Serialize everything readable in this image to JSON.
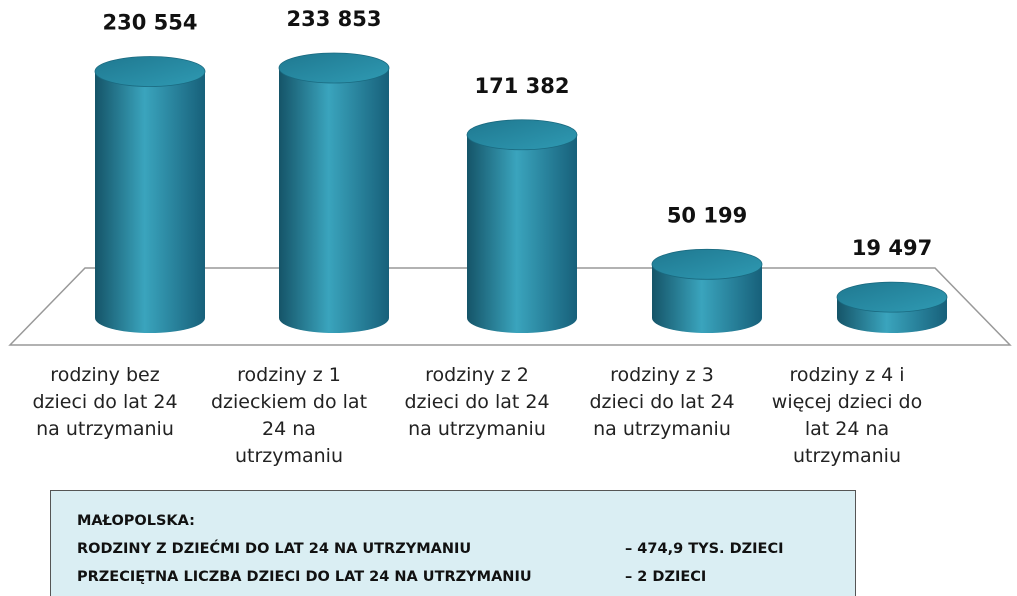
{
  "chart_data": {
    "type": "cylinder",
    "categories": [
      "rodziny bez dzieci do lat 24 na utrzymaniu",
      "rodziny z 1 dzieckiem do lat 24 na utrzymaniu",
      "rodziny z 2 dzieci do lat 24 na utrzymaniu",
      "rodziny z 3 dzieci do lat 24 na utrzymaniu",
      "rodziny z 4 i więcej dzieci do lat 24 na utrzymaniu"
    ],
    "values": [
      230554,
      233853,
      171382,
      50199,
      19497
    ],
    "value_labels": [
      "230 554",
      "233 853",
      "171 382",
      "50 199",
      "19 497"
    ],
    "color": "#237f97"
  },
  "summary": {
    "heading": "MAŁOPOLSKA:",
    "rows": [
      [
        "RODZINY Z DZIEĆMI DO LAT 24 NA UTRZYMANIU",
        "– 474,9 TYS. DZIECI"
      ],
      [
        "PRZECIĘTNA LICZBA DZIECI DO LAT 24 NA UTRZYMANIU",
        "– 2 DZIECI"
      ]
    ]
  }
}
